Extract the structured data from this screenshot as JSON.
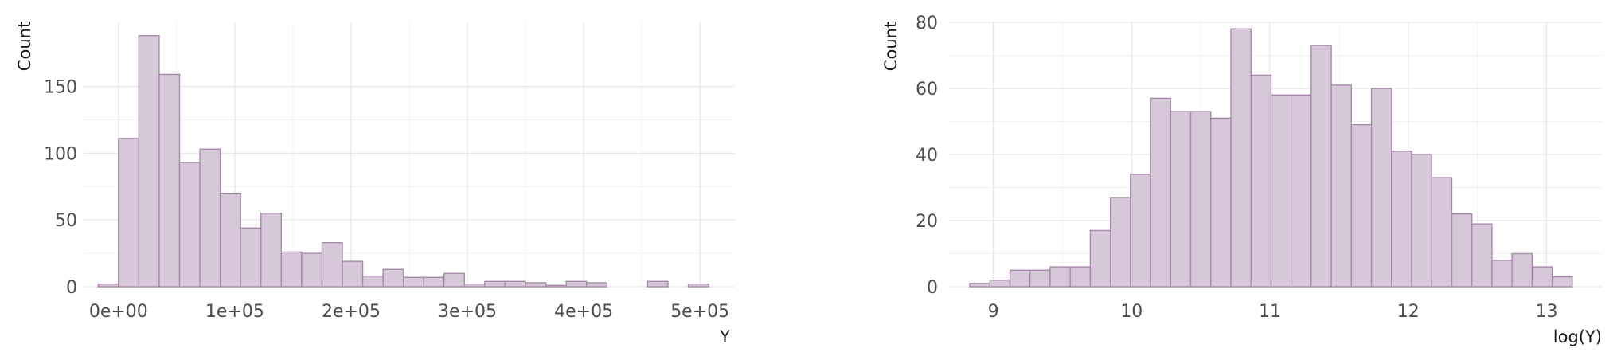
{
  "colors": {
    "bar_fill": "#d7c8d9",
    "bar_stroke": "#a68aa9",
    "grid": "#e6e6e6",
    "text": "#4d4d4d"
  },
  "chart_data": [
    {
      "type": "bar",
      "chart_kind": "histogram",
      "xlabel": "Y",
      "ylabel": "Count",
      "xlim": [
        -30000,
        530000
      ],
      "ylim": [
        0,
        198
      ],
      "x_ticks": [
        0,
        100000,
        200000,
        300000,
        400000,
        500000
      ],
      "x_tick_labels": [
        "0e+00",
        "1e+05",
        "2e+05",
        "3e+05",
        "4e+05",
        "5e+05"
      ],
      "y_ticks": [
        0,
        50,
        100,
        150
      ],
      "y_tick_labels": [
        "0",
        "50",
        "100",
        "150"
      ],
      "grid": true,
      "bin_width": 17500,
      "bin_start": -17500,
      "counts": [
        2,
        111,
        188,
        159,
        93,
        103,
        70,
        44,
        55,
        26,
        25,
        33,
        19,
        8,
        13,
        7,
        7,
        10,
        2,
        4,
        4,
        3,
        1,
        4,
        3,
        0,
        0,
        4,
        0,
        2
      ]
    },
    {
      "type": "bar",
      "chart_kind": "histogram",
      "xlabel": "log(Y)",
      "ylabel": "Count",
      "xlim": [
        8.68,
        13.4
      ],
      "ylim": [
        0,
        80
      ],
      "x_ticks": [
        9,
        10,
        11,
        12,
        13
      ],
      "x_tick_labels": [
        "9",
        "10",
        "11",
        "12",
        "13"
      ],
      "y_ticks": [
        0,
        20,
        40,
        60,
        80
      ],
      "y_tick_labels": [
        "0",
        "20",
        "40",
        "60",
        "80"
      ],
      "grid": true,
      "bin_width": 0.1452,
      "bin_start": 8.83,
      "counts": [
        1,
        2,
        5,
        5,
        6,
        6,
        17,
        27,
        34,
        57,
        53,
        53,
        51,
        78,
        64,
        58,
        58,
        73,
        61,
        49,
        60,
        41,
        40,
        33,
        22,
        19,
        8,
        10,
        6,
        3
      ]
    }
  ]
}
